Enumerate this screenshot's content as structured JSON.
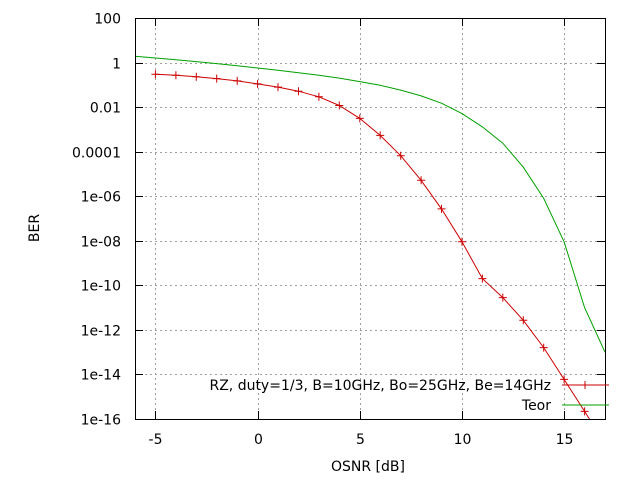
{
  "chart_data": {
    "type": "line",
    "xlabel": "OSNR [dB]",
    "ylabel": "BER",
    "xlim": [
      -6,
      17
    ],
    "ylim_log10": [
      -16,
      2
    ],
    "yscale": "log",
    "grid": true,
    "legend_position": "bottom-right",
    "x_ticks": [
      {
        "value": -5,
        "label": "-5"
      },
      {
        "value": 0,
        "label": "0"
      },
      {
        "value": 5,
        "label": "5"
      },
      {
        "value": 10,
        "label": "10"
      },
      {
        "value": 15,
        "label": "15"
      }
    ],
    "y_ticks": [
      {
        "exp": 2,
        "label": "100"
      },
      {
        "exp": 0,
        "label": "1"
      },
      {
        "exp": -2,
        "label": "0.01"
      },
      {
        "exp": -4,
        "label": "0.0001"
      },
      {
        "exp": -6,
        "label": "1e-06"
      },
      {
        "exp": -8,
        "label": "1e-08"
      },
      {
        "exp": -10,
        "label": "1e-10"
      },
      {
        "exp": -12,
        "label": "1e-12"
      },
      {
        "exp": -14,
        "label": "1e-14"
      },
      {
        "exp": -16,
        "label": "1e-16"
      }
    ],
    "series": [
      {
        "name": "RZ, duty=1/3, B=10GHz, Bo=25GHz, Be=14GHz",
        "color": "#cc0000",
        "marker": "plus",
        "x": [
          -5,
          -4,
          -3,
          -2,
          -1,
          0,
          1,
          2,
          3,
          4,
          5,
          6,
          7,
          8,
          9,
          10,
          11,
          12,
          13,
          14,
          15,
          16,
          17
        ],
        "y": [
          0.3,
          0.27,
          0.23,
          0.19,
          0.15,
          0.11,
          0.079,
          0.052,
          0.029,
          0.0118,
          0.0031,
          0.00054,
          6.6e-05,
          5.2e-06,
          2.7e-07,
          9e-09,
          2e-10,
          2.8e-11,
          2.7e-12,
          1.6e-13,
          6e-15,
          2.2e-16,
          7.9e-18
        ]
      },
      {
        "name": "Teor",
        "color": "#00a000",
        "marker": "none",
        "x": [
          -6,
          -5,
          -4,
          -3,
          -2,
          -1,
          0,
          1,
          2,
          3,
          4,
          5,
          6,
          7,
          8,
          9,
          10,
          11,
          12,
          13,
          14,
          15,
          16,
          17
        ],
        "y": [
          1.9,
          1.6,
          1.35,
          1.1,
          0.9,
          0.72,
          0.57,
          0.45,
          0.35,
          0.27,
          0.2,
          0.14,
          0.095,
          0.058,
          0.032,
          0.015,
          0.0051,
          0.0013,
          0.00024,
          2e-05,
          8e-07,
          9e-09,
          1e-11,
          1e-13
        ]
      }
    ]
  }
}
